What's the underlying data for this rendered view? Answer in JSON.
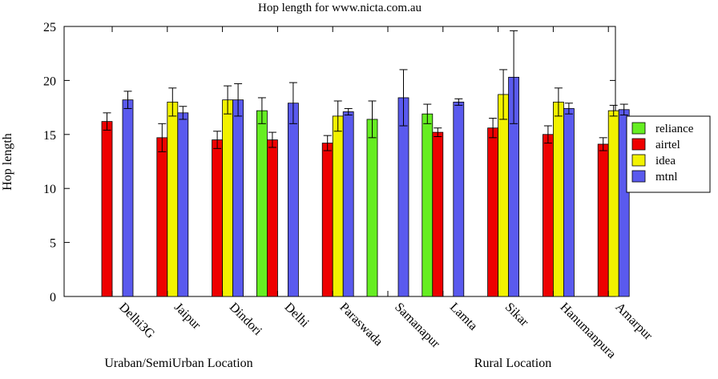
{
  "chart_data": {
    "type": "bar",
    "title": "Hop length for www.nicta.com.au",
    "xlabel": "",
    "ylabel": "Hop length",
    "ylim": [
      0,
      25
    ],
    "yticks": [
      0,
      5,
      10,
      15,
      20,
      25
    ],
    "grid": false,
    "legend_position": "right",
    "categories": [
      "Delhi3G",
      "Jaipur",
      "Dindori",
      "Delhi",
      "Paraswada",
      "Samanapur",
      "Lamta",
      "Sikar",
      "Hanumanpura",
      "Amarpur"
    ],
    "group_labels": [
      "Uraban/SemiUrban Location",
      "Rural Location"
    ],
    "series": [
      {
        "name": "reliance",
        "color": "#66ee22",
        "values": [
          null,
          null,
          null,
          17.2,
          null,
          16.4,
          16.9,
          null,
          null,
          null
        ],
        "err": [
          null,
          null,
          null,
          1.2,
          null,
          1.7,
          0.9,
          null,
          null,
          null
        ]
      },
      {
        "name": "airtel",
        "color": "#ee0000",
        "values": [
          16.2,
          14.7,
          14.5,
          14.5,
          14.2,
          null,
          15.2,
          15.6,
          15.0,
          14.1
        ],
        "err": [
          0.8,
          1.3,
          0.8,
          0.7,
          0.7,
          null,
          0.4,
          0.9,
          0.8,
          0.6
        ]
      },
      {
        "name": "idea",
        "color": "#f2f200",
        "values": [
          null,
          18.0,
          18.2,
          null,
          16.7,
          null,
          null,
          18.7,
          18.0,
          17.2
        ],
        "err": [
          null,
          1.3,
          1.3,
          null,
          1.4,
          null,
          null,
          2.3,
          1.3,
          0.5
        ]
      },
      {
        "name": "mtnl",
        "color": "#5a5aee",
        "values": [
          18.2,
          17.0,
          18.2,
          17.9,
          17.1,
          18.4,
          18.0,
          null,
          17.4,
          17.3
        ],
        "err": [
          0.8,
          0.6,
          1.5,
          1.9,
          0.3,
          2.6,
          0.3,
          null,
          0.5,
          0.5
        ]
      }
    ],
    "extra_bars": [
      {
        "category": "Sikar",
        "series": "mtnl",
        "value": 20.3,
        "err": 4.3
      }
    ]
  }
}
